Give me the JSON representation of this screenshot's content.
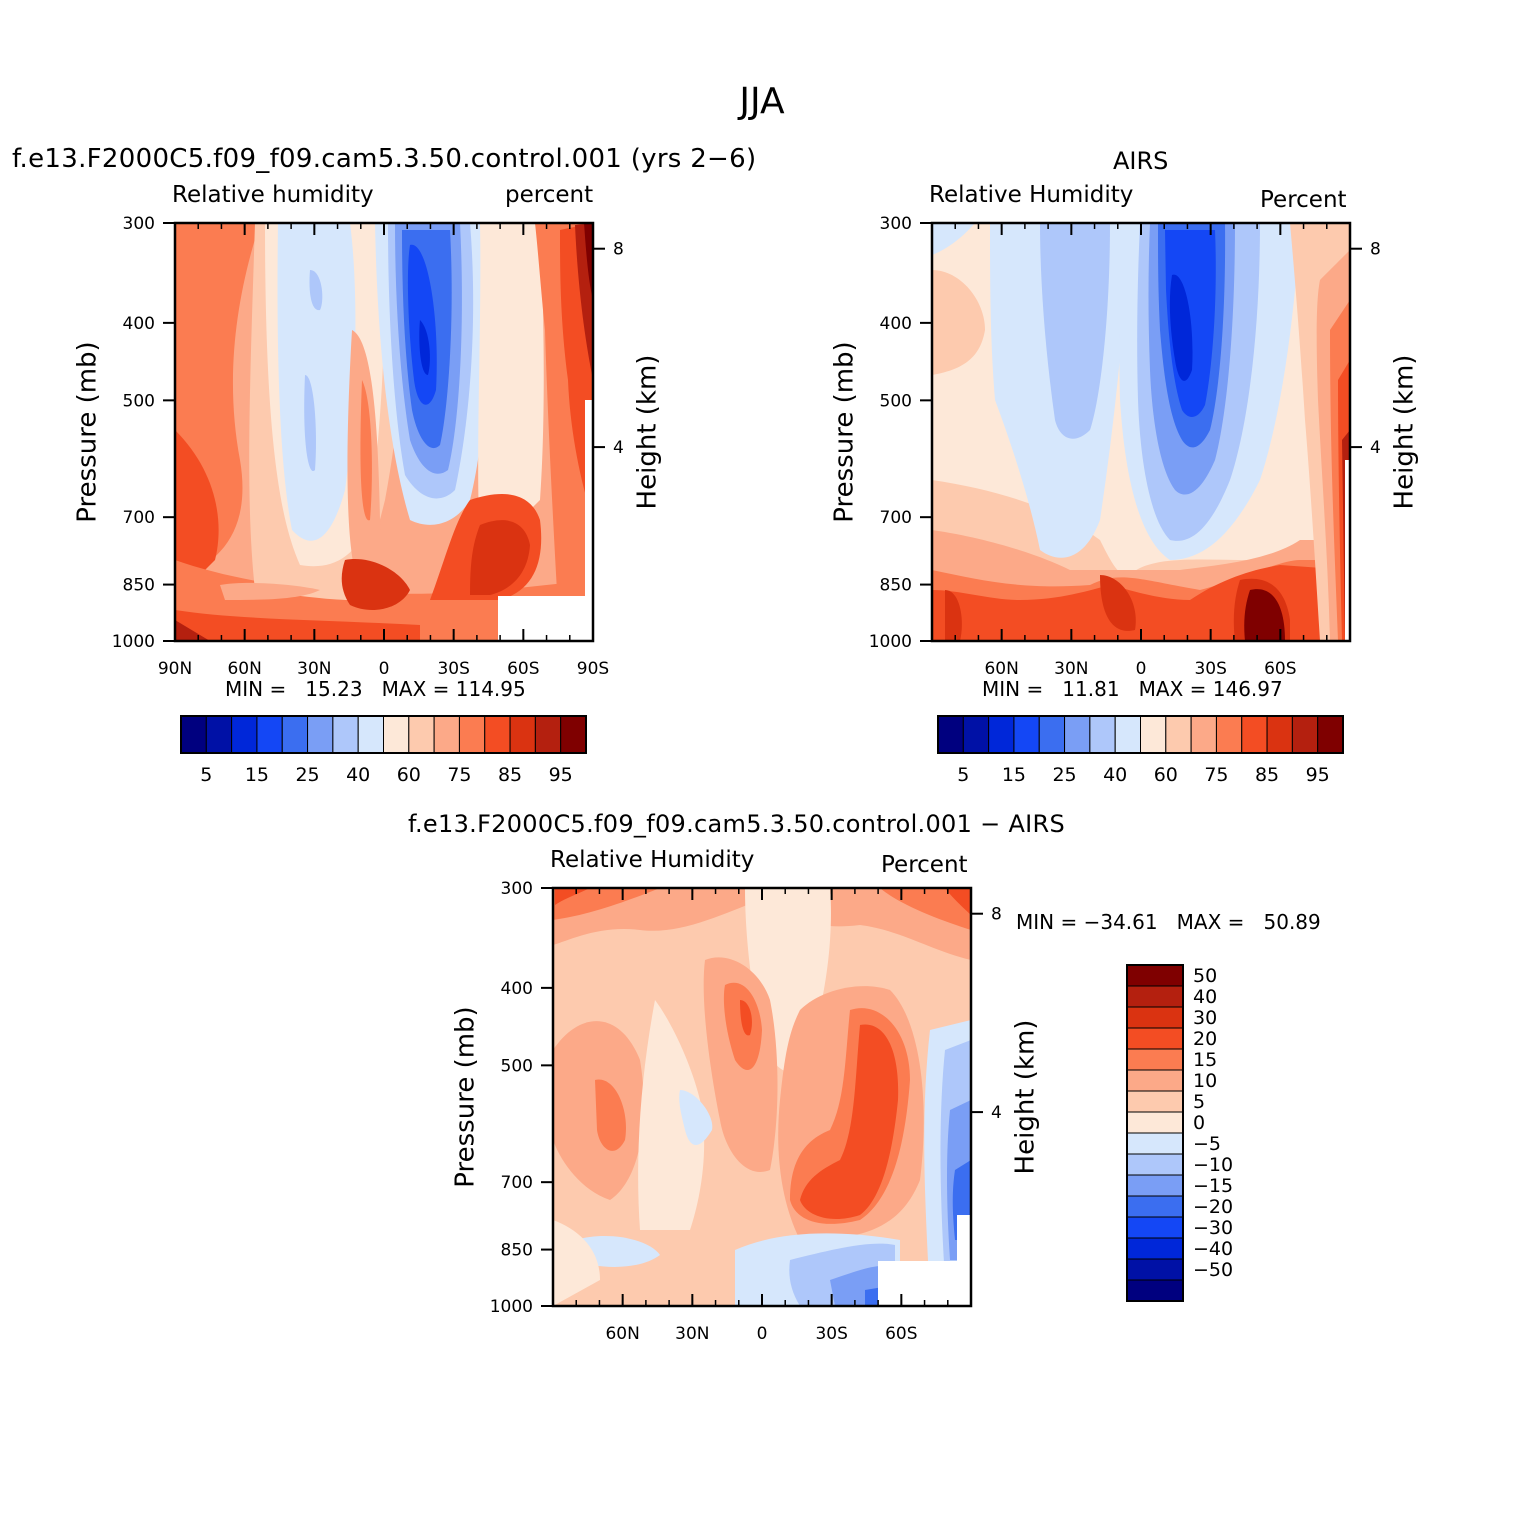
{
  "suptitle": "JJA",
  "colors": {
    "abs_levels": [
      "#00007f",
      "#0011a6",
      "#0027d9",
      "#1447f5",
      "#3b6ef0",
      "#7a9ef5",
      "#aec7fa",
      "#d6e7fc",
      "#fde8d8",
      "#fdcaae",
      "#fca988",
      "#fb7c51",
      "#f34d23",
      "#da3311",
      "#b4200f",
      "#7f0000"
    ],
    "diff_levels": [
      "#00007f",
      "#0011a6",
      "#0027d9",
      "#1447f5",
      "#3b6ef0",
      "#7a9ef5",
      "#aec7fa",
      "#d6e7fc",
      "#fde8d8",
      "#fdcaae",
      "#fca988",
      "#fb7c51",
      "#f34d23",
      "#da3311",
      "#b4200f",
      "#7f0000"
    ]
  },
  "panels": {
    "model": {
      "title": "f.e13.F2000C5.f09_f09.cam5.3.50.control.001 (yrs 2−6)",
      "left_label": "Relative humidity",
      "right_label": "percent",
      "ylabel": "Pressure (mb)",
      "y2label": "Height (km)",
      "stats": "MIN =   15.23   MAX = 114.95"
    },
    "obs": {
      "title": "AIRS",
      "left_label": "Relative Humidity",
      "right_label": "Percent",
      "ylabel": "Pressure (mb)",
      "y2label": "Height (km)",
      "stats": "MIN =   11.81   MAX = 146.97"
    },
    "diff": {
      "title": "f.e13.F2000C5.f09_f09.cam5.3.50.control.001 − AIRS",
      "left_label": "Relative Humidity",
      "right_label": "Percent",
      "ylabel": "Pressure (mb)",
      "y2label": "Height (km)",
      "stats": "MIN = −34.61   MAX =   50.89"
    }
  },
  "chart_data": [
    {
      "type": "contour",
      "title": "f.e13.F2000C5.f09_f09.cam5.3.50.control.001 (yrs 2−6)",
      "variable": "Relative humidity",
      "units": "percent",
      "xlabel": "",
      "ylabel": "Pressure (mb)",
      "y2label": "Height (km)",
      "x_ticks": [
        "90N",
        "60N",
        "30N",
        "0",
        "30S",
        "60S",
        "90S"
      ],
      "x_range": [
        90,
        -90
      ],
      "y_ticks": [
        300,
        400,
        500,
        700,
        850,
        1000
      ],
      "y_range": [
        300,
        1000
      ],
      "y2_ticks": [
        8,
        4
      ],
      "levels": [
        5,
        10,
        15,
        20,
        25,
        30,
        40,
        50,
        60,
        70,
        75,
        80,
        85,
        90,
        95
      ],
      "colorbar_labels": [
        "5",
        "15",
        "25",
        "40",
        "60",
        "75",
        "85",
        "95"
      ],
      "min": 15.23,
      "max": 114.95
    },
    {
      "type": "contour",
      "title": "AIRS",
      "variable": "Relative Humidity",
      "units": "Percent",
      "xlabel": "",
      "ylabel": "Pressure (mb)",
      "y2label": "Height (km)",
      "x_ticks": [
        "60N",
        "30N",
        "0",
        "30S",
        "60S"
      ],
      "x_range": [
        90,
        -90
      ],
      "y_ticks": [
        300,
        400,
        500,
        700,
        850,
        1000
      ],
      "y_range": [
        300,
        1000
      ],
      "y2_ticks": [
        8,
        4
      ],
      "levels": [
        5,
        10,
        15,
        20,
        25,
        30,
        40,
        50,
        60,
        70,
        75,
        80,
        85,
        90,
        95
      ],
      "colorbar_labels": [
        "5",
        "15",
        "25",
        "40",
        "60",
        "75",
        "85",
        "95"
      ],
      "min": 11.81,
      "max": 146.97
    },
    {
      "type": "contour",
      "title": "f.e13.F2000C5.f09_f09.cam5.3.50.control.001 − AIRS",
      "variable": "Relative Humidity",
      "units": "Percent",
      "xlabel": "",
      "ylabel": "Pressure (mb)",
      "y2label": "Height (km)",
      "x_ticks": [
        "60N",
        "30N",
        "0",
        "30S",
        "60S"
      ],
      "x_range": [
        90,
        -90
      ],
      "y_ticks": [
        300,
        400,
        500,
        700,
        850,
        1000
      ],
      "y_range": [
        300,
        1000
      ],
      "y2_ticks": [
        8,
        4
      ],
      "levels": [
        -50,
        -40,
        -30,
        -20,
        -15,
        -10,
        -5,
        0,
        5,
        10,
        15,
        20,
        30,
        40,
        50
      ],
      "colorbar_labels": [
        "50",
        "40",
        "30",
        "20",
        "15",
        "10",
        "5",
        "0",
        "−5",
        "−10",
        "−15",
        "−20",
        "−30",
        "−40",
        "−50"
      ],
      "min": -34.61,
      "max": 50.89
    }
  ]
}
